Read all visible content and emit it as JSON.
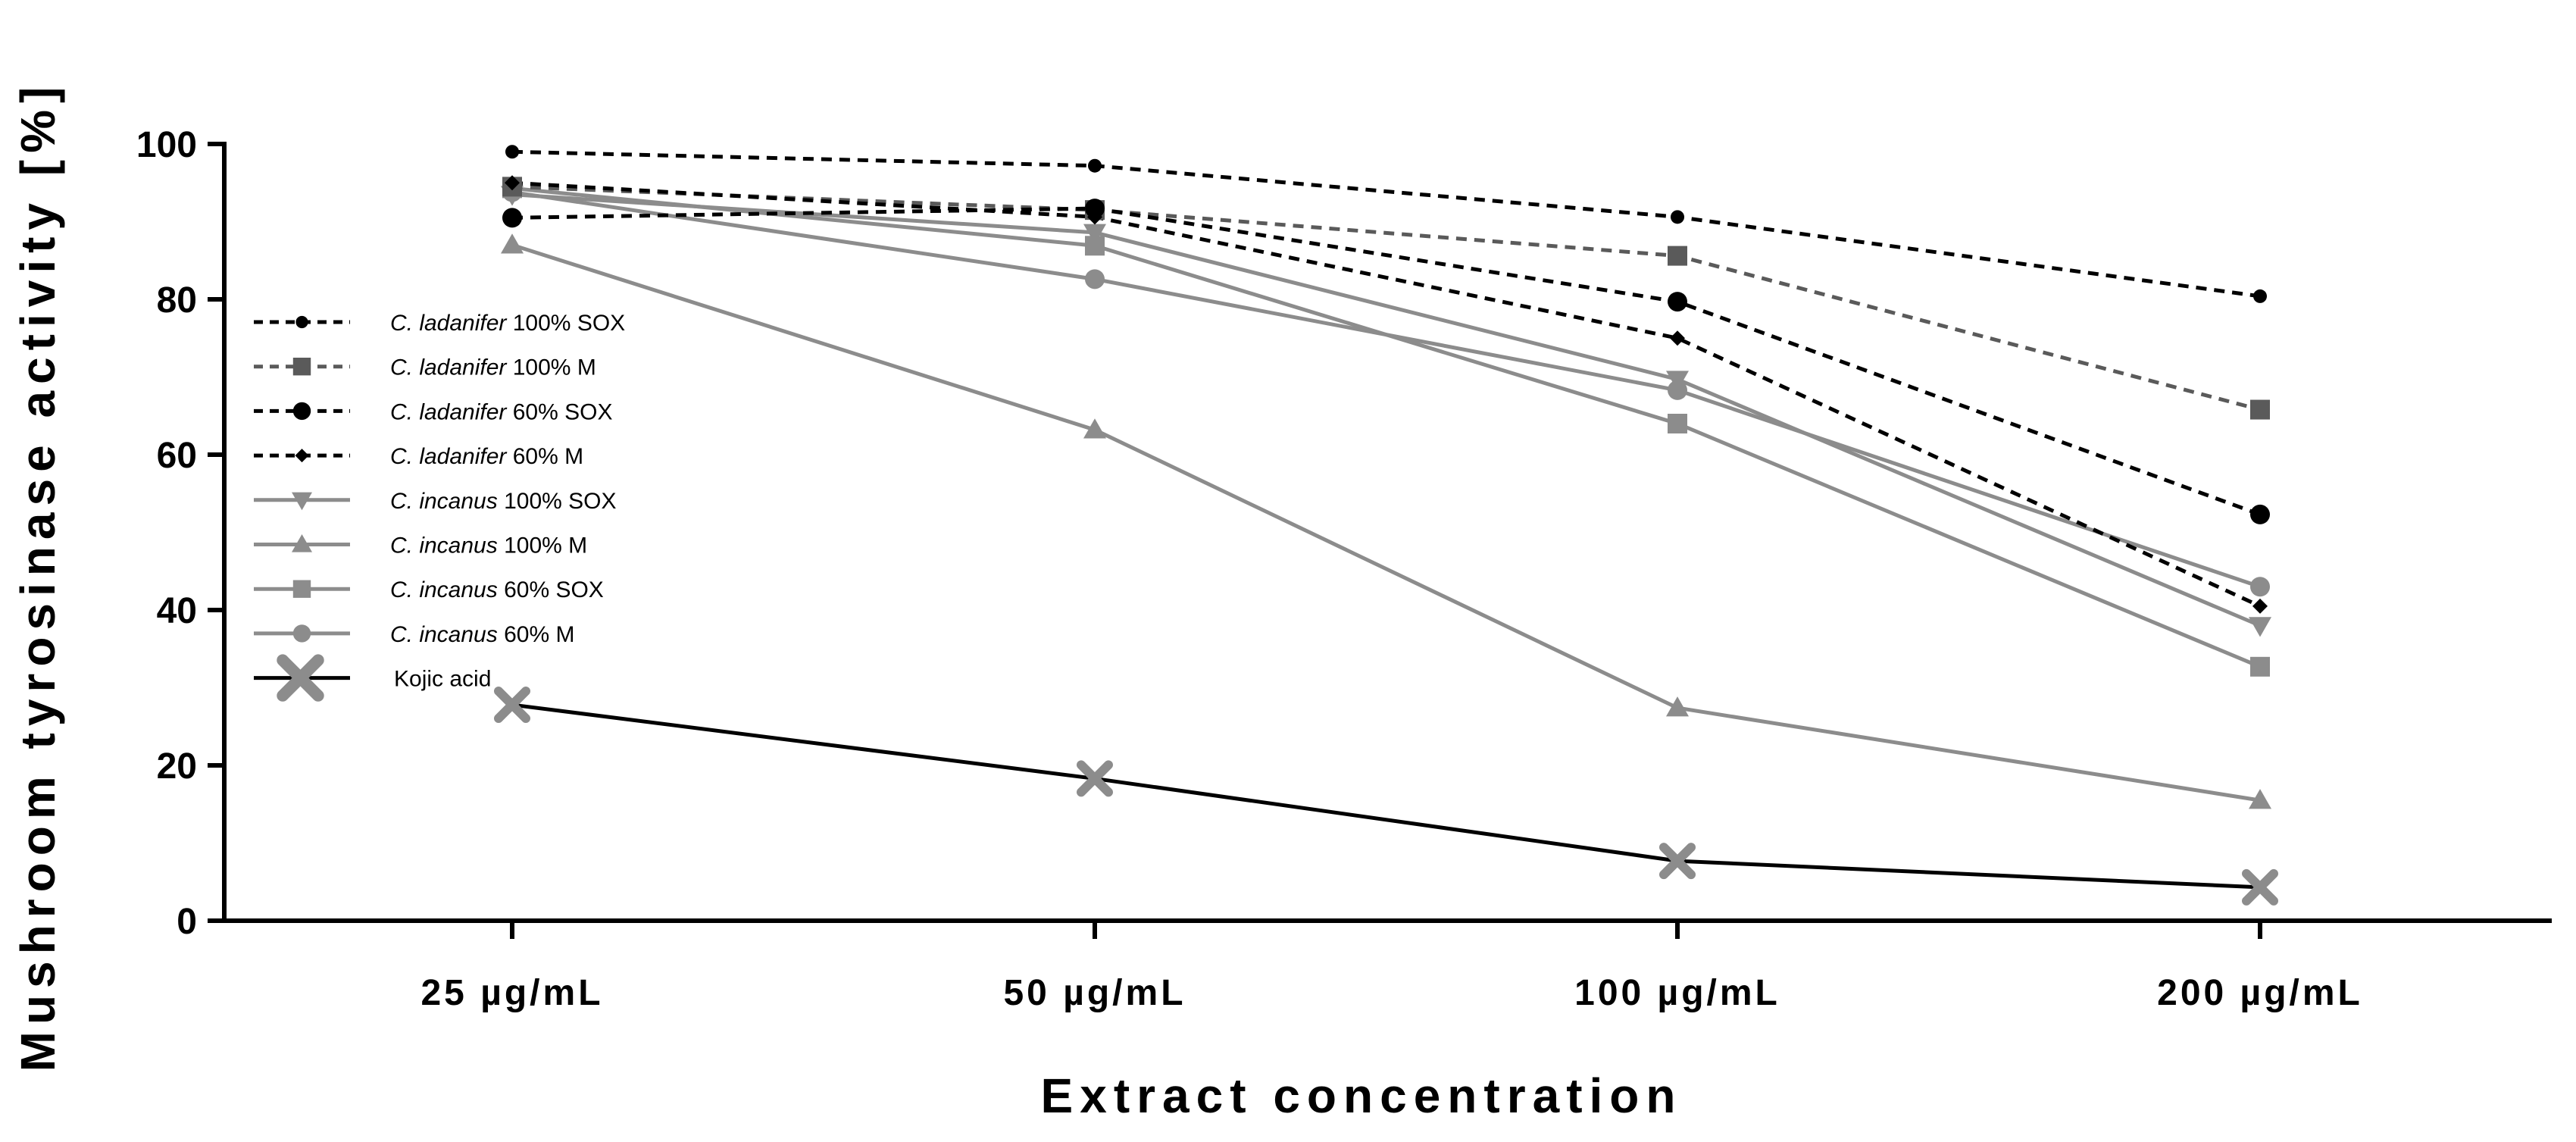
{
  "chart_data": {
    "type": "line",
    "title": "",
    "xlabel": "Extract concentration",
    "ylabel": "Mushroom tyrosinase activity  [%]",
    "categories": [
      "25 µg/mL",
      "50 µg/mL",
      "100 µg/mL",
      "200 µg/mL"
    ],
    "ylim": [
      0,
      100
    ],
    "yticks": [
      0,
      20,
      40,
      60,
      80,
      100
    ],
    "legend_position": "left",
    "series": [
      {
        "name": "C. ladanifer 100% SOX",
        "species": "C. ladanifer",
        "condition": "100% SOX",
        "values": [
          99.0,
          97.2,
          90.6,
          80.4
        ],
        "color": "#000000",
        "dash": "dashed",
        "marker": "hexagon-small"
      },
      {
        "name": "C. ladanifer 100% M",
        "species": "C. ladanifer",
        "condition": "100% M",
        "values": [
          94.5,
          91.5,
          85.6,
          65.8
        ],
        "color": "#5a5a5a",
        "dash": "dashed",
        "marker": "square"
      },
      {
        "name": "C. ladanifer 60% SOX",
        "species": "C. ladanifer",
        "condition": "60% SOX",
        "values": [
          90.5,
          91.7,
          79.7,
          52.3
        ],
        "color": "#000000",
        "dash": "dashed",
        "marker": "circle"
      },
      {
        "name": "C. ladanifer 60% M",
        "species": "C. ladanifer",
        "condition": "60% M",
        "values": [
          95.0,
          90.6,
          75.0,
          40.5
        ],
        "color": "#000000",
        "dash": "dashed",
        "marker": "diamond"
      },
      {
        "name": "C. incanus 100% SOX",
        "species": "C. incanus",
        "condition": "100% SOX",
        "values": [
          93.5,
          88.6,
          69.7,
          38.0
        ],
        "color": "#8c8c8c",
        "dash": "solid",
        "marker": "triangle-down"
      },
      {
        "name": "C. incanus 100% M",
        "species": "C. incanus",
        "condition": "100% M",
        "values": [
          87.0,
          63.2,
          27.4,
          15.5
        ],
        "color": "#8c8c8c",
        "dash": "solid",
        "marker": "triangle-up"
      },
      {
        "name": "C. incanus 60% SOX",
        "species": "C. incanus",
        "condition": "60% SOX",
        "values": [
          94.3,
          86.9,
          64.0,
          32.7
        ],
        "color": "#8c8c8c",
        "dash": "solid",
        "marker": "square"
      },
      {
        "name": "C. incanus 60% M",
        "species": "C. incanus",
        "condition": "60% M",
        "values": [
          93.8,
          82.6,
          68.3,
          43.0
        ],
        "color": "#8c8c8c",
        "dash": "solid",
        "marker": "circle"
      },
      {
        "name": "Kojic acid",
        "species": "",
        "condition": "Kojic acid",
        "values": [
          27.8,
          18.3,
          7.7,
          4.3
        ],
        "color": "#000000",
        "dash": "solid",
        "marker": "x"
      }
    ]
  }
}
